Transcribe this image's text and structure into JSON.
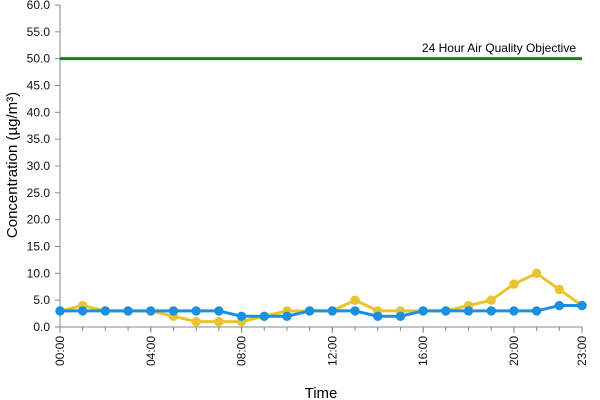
{
  "chart_data": {
    "type": "line",
    "title": "",
    "xlabel": "Time",
    "ylabel": "Concentration (µg/m³)",
    "ylim": [
      0,
      60
    ],
    "y_ticks": [
      "0.0",
      "5.0",
      "10.0",
      "15.0",
      "20.0",
      "25.0",
      "30.0",
      "35.0",
      "40.0",
      "45.0",
      "50.0",
      "55.0",
      "60.0"
    ],
    "x_tick_labels": [
      "00:00",
      "04:00",
      "08:00",
      "12:00",
      "16:00",
      "20:00",
      "23:00"
    ],
    "x_tick_hours": [
      0,
      4,
      8,
      12,
      16,
      20,
      23
    ],
    "x": [
      0,
      1,
      2,
      3,
      4,
      5,
      6,
      7,
      8,
      9,
      10,
      11,
      12,
      13,
      14,
      15,
      16,
      17,
      18,
      19,
      20,
      21,
      22,
      23
    ],
    "grid": false,
    "legend": "none",
    "reference_line": {
      "label": "24 Hour Air Quality Objective",
      "value": 50,
      "color": "#1e7b1e"
    },
    "series": [
      {
        "color": "#e8c530",
        "values": [
          3,
          4,
          3,
          3,
          3,
          2,
          1,
          1,
          1,
          2,
          3,
          3,
          3,
          5,
          3,
          3,
          3,
          3,
          4,
          5,
          8,
          10,
          7,
          4
        ]
      },
      {
        "color": "#1b8fe0",
        "values": [
          3,
          3,
          3,
          3,
          3,
          3,
          3,
          3,
          2,
          2,
          2,
          3,
          3,
          3,
          2,
          2,
          3,
          3,
          3,
          3,
          3,
          3,
          4,
          4
        ]
      }
    ]
  }
}
